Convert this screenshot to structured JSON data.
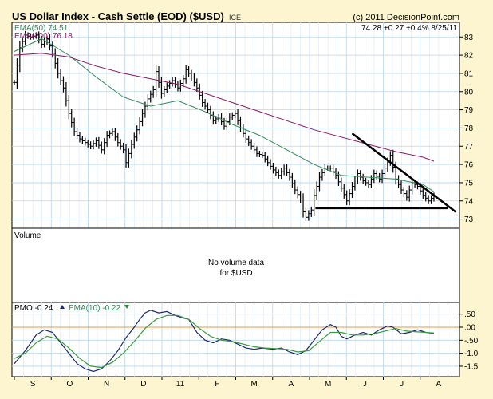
{
  "header": {
    "title": "US Dollar Index - Cash Settle (EOD) ($USD)",
    "exchange": "ICE",
    "copyright": "(c) 2011 DecisionPoint.com",
    "quote": "74.28  +0.27  +0.4%  8/25/11"
  },
  "colors": {
    "background": "#fdf5cf",
    "panel": "#ffffff",
    "grid": "#b9d6ee",
    "price": "#000000",
    "ema50": "#2e8b57",
    "ema200": "#8b1a6b",
    "pmo": "#1c2a6e",
    "pmo_signal": "#3a9a3a",
    "zero_line": "#e89a40",
    "up_arrow": "#1c2a6e",
    "down_arrow": "#2e8b2e"
  },
  "price_panel": {
    "legend": [
      {
        "label": "EMA(50)",
        "value": "74.51"
      },
      {
        "label": "EMA(200)",
        "value": "76.18"
      }
    ]
  },
  "volume_panel": {
    "title": "Volume",
    "message_line1": "No volume data",
    "message_line2": "for $USD"
  },
  "pmo_panel": {
    "pmo_label": "PMO",
    "pmo_value": "-0.24",
    "ema_label": "EMA(10)",
    "ema_value": "-0.22"
  },
  "chart_data": [
    {
      "type": "ohlc",
      "panel": "price",
      "months": [
        "S",
        "O",
        "N",
        "D",
        "11",
        "F",
        "M",
        "A",
        "M",
        "J",
        "J",
        "A"
      ],
      "y_ticks": [
        73,
        74,
        75,
        76,
        77,
        78,
        79,
        80,
        81,
        82,
        83
      ],
      "ylim": [
        72.5,
        83.8
      ],
      "grid": true,
      "series": [
        {
          "name": "$USD",
          "points": [
            [
              0,
              80.5
            ],
            [
              4,
              82.4
            ],
            [
              8,
              83.1
            ],
            [
              12,
              83.0
            ],
            [
              16,
              83.1
            ],
            [
              20,
              82.6
            ],
            [
              24,
              82.9
            ],
            [
              28,
              82.1
            ],
            [
              32,
              81.0
            ],
            [
              36,
              80.2
            ],
            [
              40,
              78.8
            ],
            [
              44,
              77.8
            ],
            [
              48,
              77.4
            ],
            [
              52,
              77.2
            ],
            [
              56,
              77.0
            ],
            [
              60,
              77.3
            ],
            [
              64,
              76.8
            ],
            [
              68,
              77.6
            ],
            [
              72,
              77.8
            ],
            [
              76,
              77.2
            ],
            [
              80,
              76.8
            ],
            [
              82,
              76.1
            ],
            [
              86,
              77.1
            ],
            [
              90,
              77.9
            ],
            [
              94,
              78.8
            ],
            [
              98,
              79.6
            ],
            [
              102,
              80.1
            ],
            [
              104,
              81.1
            ],
            [
              108,
              79.9
            ],
            [
              112,
              80.3
            ],
            [
              116,
              80.6
            ],
            [
              120,
              80.2
            ],
            [
              124,
              80.7
            ],
            [
              126,
              81.2
            ],
            [
              130,
              80.8
            ],
            [
              134,
              80.2
            ],
            [
              138,
              79.4
            ],
            [
              142,
              79.0
            ],
            [
              146,
              78.4
            ],
            [
              150,
              78.6
            ],
            [
              154,
              78.1
            ],
            [
              158,
              78.6
            ],
            [
              162,
              78.8
            ],
            [
              166,
              78.0
            ],
            [
              170,
              77.4
            ],
            [
              174,
              77.0
            ],
            [
              178,
              76.6
            ],
            [
              182,
              76.5
            ],
            [
              186,
              76.1
            ],
            [
              190,
              75.7
            ],
            [
              194,
              75.4
            ],
            [
              198,
              75.8
            ],
            [
              202,
              75.3
            ],
            [
              206,
              74.6
            ],
            [
              210,
              74.1
            ],
            [
              212,
              73.4
            ],
            [
              214,
              73.1
            ],
            [
              218,
              73.5
            ],
            [
              220,
              74.3
            ],
            [
              224,
              75.3
            ],
            [
              228,
              75.8
            ],
            [
              232,
              75.8
            ],
            [
              236,
              75.4
            ],
            [
              240,
              74.7
            ],
            [
              244,
              74.0
            ],
            [
              248,
              74.8
            ],
            [
              252,
              75.5
            ],
            [
              256,
              75.1
            ],
            [
              260,
              74.9
            ],
            [
              264,
              75.5
            ],
            [
              268,
              75.2
            ],
            [
              272,
              75.8
            ],
            [
              276,
              76.5
            ],
            [
              280,
              75.2
            ],
            [
              284,
              74.6
            ],
            [
              288,
              74.2
            ],
            [
              292,
              75.0
            ],
            [
              296,
              74.8
            ],
            [
              300,
              74.3
            ],
            [
              304,
              74.0
            ],
            [
              308,
              74.28
            ]
          ]
        },
        {
          "name": "EMA(50)",
          "points": [
            [
              0,
              82.2
            ],
            [
              20,
              82.9
            ],
            [
              40,
              82.0
            ],
            [
              60,
              80.8
            ],
            [
              80,
              79.7
            ],
            [
              100,
              79.2
            ],
            [
              120,
              79.5
            ],
            [
              140,
              78.9
            ],
            [
              160,
              78.2
            ],
            [
              180,
              77.6
            ],
            [
              200,
              76.8
            ],
            [
              220,
              76.0
            ],
            [
              240,
              75.4
            ],
            [
              260,
              75.3
            ],
            [
              280,
              75.2
            ],
            [
              300,
              74.9
            ],
            [
              308,
              74.5
            ]
          ]
        },
        {
          "name": "EMA(200)",
          "points": [
            [
              0,
              82.0
            ],
            [
              20,
              82.1
            ],
            [
              40,
              81.9
            ],
            [
              60,
              81.4
            ],
            [
              80,
              81.0
            ],
            [
              100,
              80.7
            ],
            [
              120,
              80.4
            ],
            [
              140,
              79.9
            ],
            [
              160,
              79.4
            ],
            [
              180,
              78.9
            ],
            [
              200,
              78.4
            ],
            [
              220,
              77.9
            ],
            [
              240,
              77.5
            ],
            [
              260,
              77.1
            ],
            [
              280,
              76.7
            ],
            [
              300,
              76.4
            ],
            [
              308,
              76.18
            ]
          ]
        }
      ],
      "annotations": [
        {
          "kind": "trendline",
          "from": [
            248,
            77.7
          ],
          "to": [
            324,
            73.4
          ]
        },
        {
          "kind": "support",
          "from": [
            221,
            73.6
          ],
          "to": [
            318,
            73.6
          ]
        }
      ]
    },
    {
      "type": "line",
      "panel": "pmo",
      "y_ticks": [
        0.5,
        0.0,
        -0.5,
        -1.0,
        -1.5
      ],
      "y_tick_labels": [
        ".50",
        ".00",
        "-.50",
        "-1.0",
        "-1.5"
      ],
      "ylim": [
        -1.9,
        0.95
      ],
      "zero_line": 0.0,
      "series": [
        {
          "name": "PMO",
          "points": [
            [
              0,
              -1.4
            ],
            [
              8,
              -0.9
            ],
            [
              16,
              -0.3
            ],
            [
              22,
              -0.1
            ],
            [
              28,
              -0.2
            ],
            [
              34,
              -0.6
            ],
            [
              40,
              -1.0
            ],
            [
              46,
              -1.4
            ],
            [
              52,
              -1.6
            ],
            [
              58,
              -1.7
            ],
            [
              64,
              -1.6
            ],
            [
              70,
              -1.3
            ],
            [
              76,
              -0.9
            ],
            [
              82,
              -0.4
            ],
            [
              88,
              0.0
            ],
            [
              92,
              0.3
            ],
            [
              96,
              0.55
            ],
            [
              100,
              0.65
            ],
            [
              106,
              0.55
            ],
            [
              112,
              0.6
            ],
            [
              118,
              0.45
            ],
            [
              124,
              0.35
            ],
            [
              128,
              0.3
            ],
            [
              134,
              -0.2
            ],
            [
              140,
              -0.5
            ],
            [
              146,
              -0.6
            ],
            [
              152,
              -0.45
            ],
            [
              158,
              -0.5
            ],
            [
              164,
              -0.65
            ],
            [
              170,
              -0.8
            ],
            [
              176,
              -0.85
            ],
            [
              182,
              -0.8
            ],
            [
              190,
              -0.85
            ],
            [
              196,
              -0.8
            ],
            [
              202,
              -0.95
            ],
            [
              208,
              -1.05
            ],
            [
              214,
              -0.9
            ],
            [
              220,
              -0.5
            ],
            [
              226,
              -0.1
            ],
            [
              232,
              0.1
            ],
            [
              236,
              0.0
            ],
            [
              240,
              -0.35
            ],
            [
              244,
              -0.45
            ],
            [
              250,
              -0.3
            ],
            [
              256,
              -0.2
            ],
            [
              262,
              -0.3
            ],
            [
              268,
              -0.1
            ],
            [
              274,
              0.05
            ],
            [
              278,
              0.0
            ],
            [
              284,
              -0.25
            ],
            [
              290,
              -0.2
            ],
            [
              296,
              -0.1
            ],
            [
              302,
              -0.2
            ],
            [
              308,
              -0.24
            ]
          ]
        },
        {
          "name": "EMA(10)",
          "points": [
            [
              0,
              -1.2
            ],
            [
              8,
              -1.0
            ],
            [
              16,
              -0.6
            ],
            [
              24,
              -0.35
            ],
            [
              32,
              -0.45
            ],
            [
              40,
              -0.8
            ],
            [
              48,
              -1.2
            ],
            [
              56,
              -1.5
            ],
            [
              64,
              -1.55
            ],
            [
              72,
              -1.35
            ],
            [
              80,
              -1.0
            ],
            [
              88,
              -0.55
            ],
            [
              96,
              -0.05
            ],
            [
              104,
              0.3
            ],
            [
              112,
              0.45
            ],
            [
              120,
              0.45
            ],
            [
              128,
              0.3
            ],
            [
              136,
              -0.05
            ],
            [
              144,
              -0.35
            ],
            [
              152,
              -0.5
            ],
            [
              160,
              -0.55
            ],
            [
              168,
              -0.65
            ],
            [
              176,
              -0.75
            ],
            [
              184,
              -0.8
            ],
            [
              192,
              -0.82
            ],
            [
              200,
              -0.85
            ],
            [
              208,
              -0.95
            ],
            [
              216,
              -0.9
            ],
            [
              224,
              -0.55
            ],
            [
              232,
              -0.2
            ],
            [
              240,
              -0.2
            ],
            [
              248,
              -0.3
            ],
            [
              256,
              -0.3
            ],
            [
              264,
              -0.25
            ],
            [
              272,
              -0.15
            ],
            [
              280,
              -0.05
            ],
            [
              288,
              -0.15
            ],
            [
              296,
              -0.18
            ],
            [
              308,
              -0.22
            ]
          ]
        }
      ]
    }
  ]
}
